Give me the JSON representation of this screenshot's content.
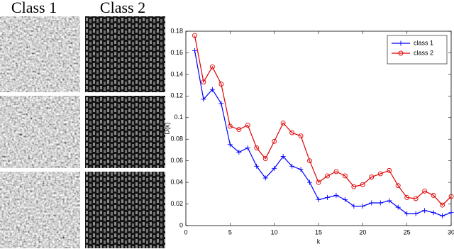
{
  "figure": {
    "labels": [
      "Class 1",
      "Class 2"
    ]
  },
  "chart_data": {
    "type": "line",
    "x_label": "k",
    "y_label": "D(k)",
    "x": [
      1,
      2,
      3,
      4,
      5,
      6,
      7,
      8,
      9,
      10,
      11,
      12,
      13,
      14,
      15,
      16,
      17,
      18,
      19,
      20,
      21,
      22,
      23,
      24,
      25,
      26,
      27,
      28,
      29,
      30
    ],
    "series": [
      {
        "name": "class 1",
        "color": "#0000ff",
        "marker": "plus",
        "values": [
          0.162,
          0.117,
          0.126,
          0.113,
          0.075,
          0.068,
          0.072,
          0.055,
          0.044,
          0.053,
          0.064,
          0.055,
          0.052,
          0.04,
          0.024,
          0.026,
          0.028,
          0.024,
          0.018,
          0.018,
          0.021,
          0.021,
          0.023,
          0.017,
          0.011,
          0.011,
          0.014,
          0.012,
          0.009,
          0.012
        ]
      },
      {
        "name": "class 2",
        "color": "#e00000",
        "marker": "circle",
        "values": [
          0.176,
          0.133,
          0.147,
          0.131,
          0.092,
          0.089,
          0.093,
          0.072,
          0.062,
          0.078,
          0.095,
          0.086,
          0.083,
          0.06,
          0.04,
          0.046,
          0.05,
          0.046,
          0.036,
          0.038,
          0.045,
          0.048,
          0.051,
          0.037,
          0.026,
          0.025,
          0.032,
          0.028,
          0.019,
          0.027
        ]
      }
    ],
    "xlim": [
      0,
      30
    ],
    "xticks": [
      0,
      5,
      10,
      15,
      20,
      25,
      30
    ],
    "ylim": [
      0,
      0.18
    ],
    "yticks": [
      0,
      0.02,
      0.04,
      0.06,
      0.08,
      0.1,
      0.12,
      0.14,
      0.16,
      0.18
    ],
    "legend": "upper right"
  }
}
